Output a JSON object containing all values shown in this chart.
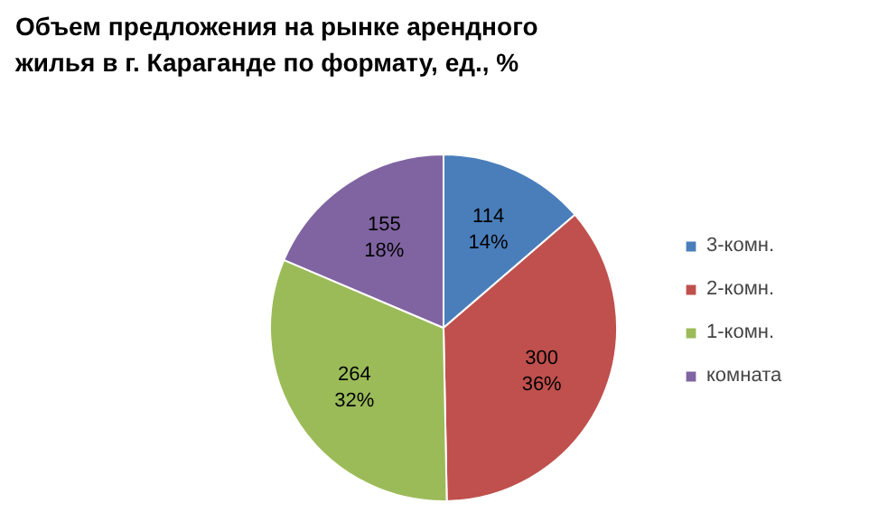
{
  "chart_data": {
    "type": "pie",
    "title": "Объем предложения на рынке арендного\nжилья в г. Караганде по формату, ед., %",
    "categories": [
      "3-комн.",
      "2-комн.",
      "1-комн.",
      "комната"
    ],
    "values": [
      114,
      300,
      264,
      155
    ],
    "value_labels": [
      "114\n14%",
      "300\n36%",
      "264\n32%",
      "155\n18%"
    ],
    "colors": [
      "#4a7ebb",
      "#c0504d",
      "#9bbb59",
      "#8064a2"
    ],
    "legend": "right"
  }
}
